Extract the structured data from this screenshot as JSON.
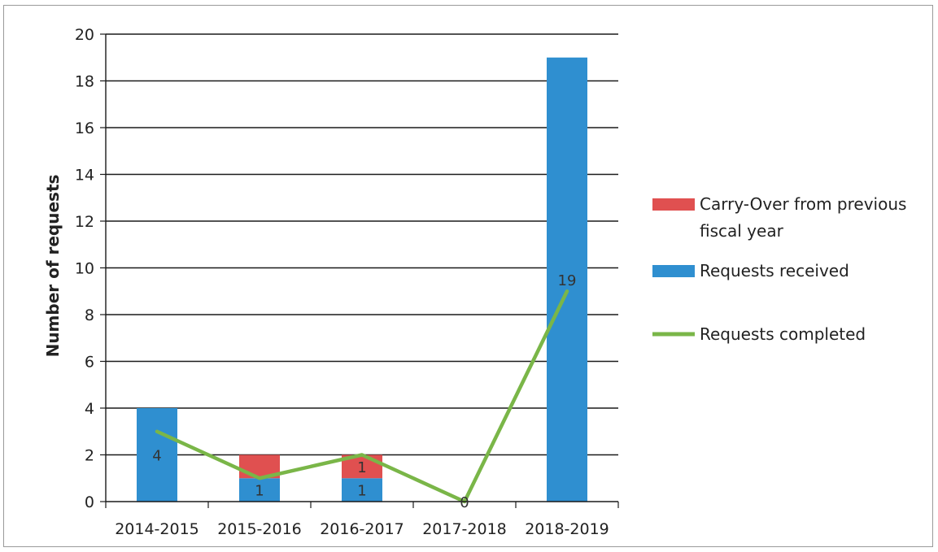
{
  "chart_data": {
    "type": "bar",
    "stacked": true,
    "categories": [
      "2014-2015",
      "2015-2016",
      "2016-2017",
      "2017-2018",
      "2018-2019"
    ],
    "series": [
      {
        "name": "Requests received",
        "kind": "bar",
        "color": "#2f8fd0",
        "values": [
          4,
          1,
          1,
          0,
          19
        ],
        "labels": [
          "4",
          "1",
          "1",
          "",
          "19"
        ]
      },
      {
        "name": "Carry-Over from previous fiscal year",
        "kind": "bar",
        "color": "#e05050",
        "values": [
          0,
          1,
          1,
          0,
          0
        ],
        "labels": [
          "",
          "",
          "1",
          "",
          ""
        ]
      },
      {
        "name": "Requests completed",
        "kind": "line",
        "color": "#7ab648",
        "values": [
          3,
          1,
          2,
          0,
          9
        ],
        "labels": [
          "",
          "",
          "",
          "0",
          ""
        ]
      }
    ],
    "ylabel": "Number of requests",
    "xlabel": "",
    "ylim": [
      0,
      20
    ],
    "yticks": [
      0,
      2,
      4,
      6,
      8,
      10,
      12,
      14,
      16,
      18,
      20
    ],
    "grid": true,
    "legend": {
      "placement": "right",
      "order": [
        "Carry-Over from previous fiscal year",
        "Requests received",
        "Requests completed"
      ],
      "lines": [
        [
          "Carry-Over from previous",
          "fiscal year"
        ],
        [
          "Requests received"
        ],
        [
          "Requests completed"
        ]
      ]
    }
  }
}
